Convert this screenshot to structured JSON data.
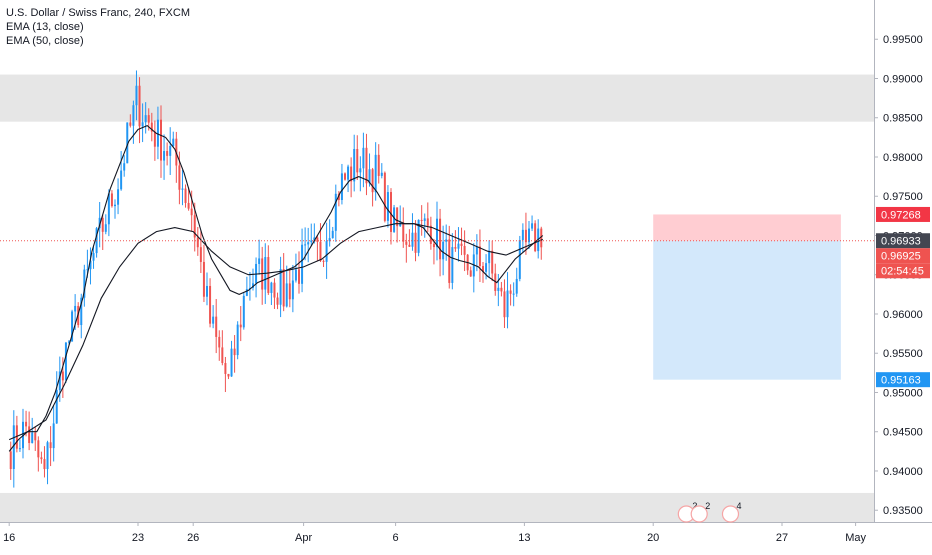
{
  "chart_data": {
    "type": "candlestick",
    "title": "U.S. Dollar / Swiss Franc, 240, FXCM",
    "indicators": [
      "EMA (13, close)",
      "EMA (50, close)"
    ],
    "colors": {
      "up": "#2196f3",
      "down": "#ef5350",
      "ema": "#131722",
      "zone": "#e6e6e6",
      "stop_zone": "#ffcdd2",
      "target_zone": "#d3e8fb",
      "price_line": "#ef5350",
      "stop_label": "#f23645",
      "target_label": "#2196f3",
      "current_label": "#434651",
      "last_label": "#ef5350"
    },
    "y_range": [
      0.9335,
      1.0
    ],
    "y_ticks": [
      "0.99500",
      "0.99000",
      "0.98500",
      "0.98000",
      "0.97500",
      "0.97000",
      "0.96500",
      "0.96000",
      "0.95500",
      "0.95000",
      "0.94500",
      "0.94000",
      "0.93500"
    ],
    "x_ticks": [
      {
        "label": "16",
        "day": 0
      },
      {
        "label": "23",
        "day": 7
      },
      {
        "label": "26",
        "day": 10
      },
      {
        "label": "Apr",
        "day": 16
      },
      {
        "label": "6",
        "day": 21
      },
      {
        "label": "13",
        "day": 28
      },
      {
        "label": "20",
        "day": 35
      },
      {
        "label": "27",
        "day": 42
      },
      {
        "label": "May",
        "day": 46
      }
    ],
    "x_range_days": [
      -0.5,
      47
    ],
    "zones": [
      {
        "from": 0.9845,
        "to": 0.9905
      },
      {
        "from": 0.9335,
        "to": 0.9372
      }
    ],
    "position": {
      "start_day": 35.0,
      "end_day": 45.2,
      "entry": 0.96933,
      "stop": 0.97268,
      "target": 0.95163
    },
    "price_labels": {
      "stop": "0.97268",
      "current": "0.96933",
      "last": "0.96925",
      "countdown": "02:54:45",
      "target": "0.95163"
    },
    "events": [
      {
        "day": 36.8,
        "text": "2"
      },
      {
        "day": 37.5,
        "text": "2"
      },
      {
        "day": 39.2,
        "text": "4"
      }
    ],
    "segments": [
      {
        "days": [
          0,
          1
        ],
        "from": 0.9425,
        "to": 0.9455
      },
      {
        "days": [
          1,
          2
        ],
        "from": 0.9455,
        "to": 0.9395
      },
      {
        "days": [
          2,
          3
        ],
        "from": 0.9395,
        "to": 0.954
      },
      {
        "days": [
          3,
          4
        ],
        "from": 0.954,
        "to": 0.962
      },
      {
        "days": [
          4,
          5
        ],
        "from": 0.962,
        "to": 0.97
      },
      {
        "days": [
          5,
          6
        ],
        "from": 0.97,
        "to": 0.977
      },
      {
        "days": [
          6,
          7
        ],
        "from": 0.977,
        "to": 0.987
      },
      {
        "days": [
          7,
          8
        ],
        "from": 0.987,
        "to": 0.983
      },
      {
        "days": [
          8,
          9
        ],
        "from": 0.983,
        "to": 0.98
      },
      {
        "days": [
          9,
          10
        ],
        "from": 0.98,
        "to": 0.973
      },
      {
        "days": [
          10,
          11
        ],
        "from": 0.973,
        "to": 0.959
      },
      {
        "days": [
          11,
          12
        ],
        "from": 0.959,
        "to": 0.951
      },
      {
        "days": [
          12,
          13
        ],
        "from": 0.951,
        "to": 0.964
      },
      {
        "days": [
          13,
          14
        ],
        "from": 0.964,
        "to": 0.9655
      },
      {
        "days": [
          14,
          15
        ],
        "from": 0.9655,
        "to": 0.9625
      },
      {
        "days": [
          15,
          16
        ],
        "from": 0.9625,
        "to": 0.9665
      },
      {
        "days": [
          16,
          17
        ],
        "from": 0.9665,
        "to": 0.968
      },
      {
        "days": [
          17,
          18
        ],
        "from": 0.968,
        "to": 0.976
      },
      {
        "days": [
          18,
          19
        ],
        "from": 0.976,
        "to": 0.9795
      },
      {
        "days": [
          19,
          20
        ],
        "from": 0.9795,
        "to": 0.978
      },
      {
        "days": [
          20,
          21
        ],
        "from": 0.978,
        "to": 0.971
      },
      {
        "days": [
          21,
          22
        ],
        "from": 0.971,
        "to": 0.97
      },
      {
        "days": [
          22,
          23
        ],
        "from": 0.97,
        "to": 0.9715
      },
      {
        "days": [
          23,
          24
        ],
        "from": 0.9715,
        "to": 0.9665
      },
      {
        "days": [
          24,
          25
        ],
        "from": 0.9665,
        "to": 0.966
      },
      {
        "days": [
          25,
          26
        ],
        "from": 0.966,
        "to": 0.967
      },
      {
        "days": [
          26,
          27
        ],
        "from": 0.967,
        "to": 0.9605
      },
      {
        "days": [
          27,
          28
        ],
        "from": 0.9605,
        "to": 0.968
      },
      {
        "days": [
          28,
          29
        ],
        "from": 0.968,
        "to": 0.9705
      }
    ],
    "ema13": [
      [
        0,
        0.9425
      ],
      [
        0.5,
        0.944
      ],
      [
        1,
        0.945
      ],
      [
        1.5,
        0.945
      ],
      [
        2,
        0.947
      ],
      [
        2.5,
        0.95
      ],
      [
        3,
        0.954
      ],
      [
        3.5,
        0.958
      ],
      [
        4,
        0.962
      ],
      [
        4.5,
        0.968
      ],
      [
        5,
        0.972
      ],
      [
        5.5,
        0.976
      ],
      [
        6,
        0.979
      ],
      [
        6.5,
        0.982
      ],
      [
        7,
        0.9835
      ],
      [
        7.5,
        0.984
      ],
      [
        8,
        0.983
      ],
      [
        8.5,
        0.9825
      ],
      [
        9,
        0.981
      ],
      [
        9.5,
        0.978
      ],
      [
        10,
        0.974
      ],
      [
        10.5,
        0.97
      ],
      [
        11,
        0.967
      ],
      [
        11.5,
        0.965
      ],
      [
        12,
        0.963
      ],
      [
        12.5,
        0.9625
      ],
      [
        13,
        0.963
      ],
      [
        13.5,
        0.964
      ],
      [
        14,
        0.9645
      ],
      [
        14.5,
        0.965
      ],
      [
        15,
        0.9655
      ],
      [
        15.5,
        0.966
      ],
      [
        16,
        0.967
      ],
      [
        16.5,
        0.969
      ],
      [
        17,
        0.971
      ],
      [
        17.5,
        0.973
      ],
      [
        18,
        0.9755
      ],
      [
        18.5,
        0.977
      ],
      [
        19,
        0.9775
      ],
      [
        19.5,
        0.977
      ],
      [
        20,
        0.9755
      ],
      [
        20.5,
        0.9735
      ],
      [
        21,
        0.972
      ],
      [
        21.5,
        0.9715
      ],
      [
        22,
        0.9715
      ],
      [
        22.5,
        0.971
      ],
      [
        23,
        0.9695
      ],
      [
        23.5,
        0.968
      ],
      [
        24,
        0.9672
      ],
      [
        24.5,
        0.9668
      ],
      [
        25,
        0.9665
      ],
      [
        25.5,
        0.966
      ],
      [
        26,
        0.9648
      ],
      [
        26.5,
        0.964
      ],
      [
        27,
        0.9655
      ],
      [
        27.5,
        0.967
      ],
      [
        28,
        0.968
      ],
      [
        28.5,
        0.969
      ],
      [
        29,
        0.97
      ]
    ],
    "ema50": [
      [
        0,
        0.944
      ],
      [
        1,
        0.945
      ],
      [
        2,
        0.9465
      ],
      [
        3,
        0.951
      ],
      [
        4,
        0.956
      ],
      [
        5,
        0.962
      ],
      [
        6,
        0.966
      ],
      [
        7,
        0.969
      ],
      [
        8,
        0.9705
      ],
      [
        9,
        0.971
      ],
      [
        10,
        0.9705
      ],
      [
        11,
        0.968
      ],
      [
        12,
        0.966
      ],
      [
        13,
        0.965
      ],
      [
        14,
        0.9652
      ],
      [
        15,
        0.9655
      ],
      [
        16,
        0.966
      ],
      [
        17,
        0.967
      ],
      [
        18,
        0.969
      ],
      [
        19,
        0.9705
      ],
      [
        20,
        0.971
      ],
      [
        21,
        0.9715
      ],
      [
        22,
        0.9715
      ],
      [
        23,
        0.971
      ],
      [
        24,
        0.97
      ],
      [
        25,
        0.969
      ],
      [
        26,
        0.968
      ],
      [
        27,
        0.9675
      ],
      [
        28,
        0.9685
      ],
      [
        29,
        0.9695
      ]
    ]
  }
}
